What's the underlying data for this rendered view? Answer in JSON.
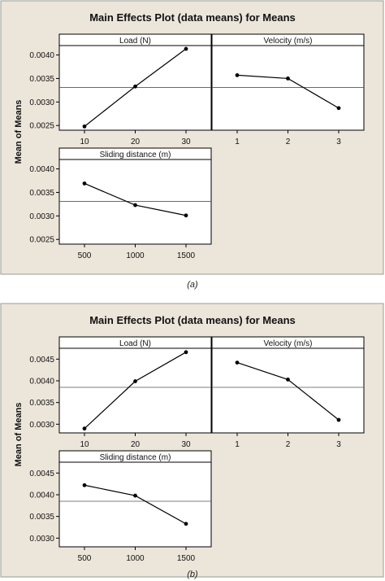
{
  "colors": {
    "background": "#ece5da",
    "plot_bg": "#ffffff",
    "line": "#000000",
    "mean_line": "#555555"
  },
  "captions": {
    "a": "(a)",
    "b": "(b)"
  },
  "chart_data": [
    {
      "type": "line",
      "title": "Main Effects Plot (data means) for Means",
      "ylabel": "Mean of Means",
      "ylim": [
        0.0024,
        0.0042
      ],
      "yticks": [
        "0.0025",
        "0.0030",
        "0.0035",
        "0.0040"
      ],
      "grand_mean": 0.00331,
      "panels": [
        {
          "label": "Load  (N)",
          "categories": [
            "10",
            "20",
            "30"
          ],
          "values": [
            0.00248,
            0.00333,
            0.00413
          ]
        },
        {
          "label": "Velocity (m/s)",
          "categories": [
            "1",
            "2",
            "3"
          ],
          "values": [
            0.00357,
            0.0035,
            0.00287
          ]
        },
        {
          "label": "Sliding distance (m)",
          "categories": [
            "500",
            "1000",
            "1500"
          ],
          "values": [
            0.00369,
            0.00323,
            0.00301
          ]
        }
      ]
    },
    {
      "type": "line",
      "title": "Main Effects Plot (data means) for Means",
      "ylabel": "Mean of Means",
      "ylim": [
        0.0028,
        0.00475
      ],
      "yticks": [
        "0.0030",
        "0.0035",
        "0.0040",
        "0.0045"
      ],
      "grand_mean": 0.00385,
      "panels": [
        {
          "label": "Load  (N)",
          "categories": [
            "10",
            "20",
            "30"
          ],
          "values": [
            0.0029,
            0.00399,
            0.00466
          ]
        },
        {
          "label": "Velocity (m/s)",
          "categories": [
            "1",
            "2",
            "3"
          ],
          "values": [
            0.00442,
            0.00403,
            0.0031
          ]
        },
        {
          "label": "Sliding distance (m)",
          "categories": [
            "500",
            "1000",
            "1500"
          ],
          "values": [
            0.00422,
            0.00398,
            0.00333
          ]
        }
      ]
    }
  ]
}
